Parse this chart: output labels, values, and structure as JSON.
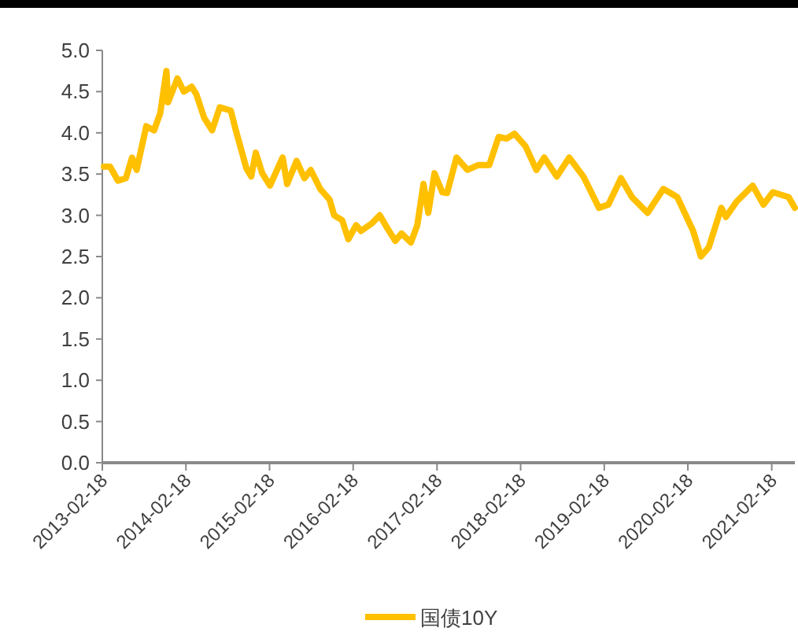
{
  "chart_data": {
    "type": "line",
    "x": [
      "2013-02-25",
      "2013-03-24",
      "2013-04-27",
      "2013-06-01",
      "2013-06-28",
      "2013-07-18",
      "2013-08-29",
      "2013-10-02",
      "2013-10-29",
      "2013-11-25",
      "2013-12-02",
      "2014-01-12",
      "2014-02-09",
      "2014-03-15",
      "2014-04-04",
      "2014-05-09",
      "2014-06-12",
      "2014-07-16",
      "2014-09-02",
      "2014-09-22",
      "2014-11-09",
      "2014-11-30",
      "2014-12-20",
      "2015-01-17",
      "2015-02-20",
      "2015-04-16",
      "2015-05-06",
      "2015-06-16",
      "2015-07-20",
      "2015-08-17",
      "2015-09-27",
      "2015-11-07",
      "2015-11-27",
      "2016-01-01",
      "2016-01-28",
      "2016-03-02",
      "2016-03-23",
      "2016-05-09",
      "2016-06-13",
      "2016-07-17",
      "2016-08-20",
      "2016-09-16",
      "2016-10-27",
      "2016-11-24",
      "2016-12-21",
      "2017-01-11",
      "2017-02-07",
      "2017-03-13",
      "2017-04-03",
      "2017-05-14",
      "2017-07-01",
      "2017-08-18",
      "2017-10-04",
      "2017-11-14",
      "2017-12-19",
      "2018-01-22",
      "2018-03-11",
      "2018-04-28",
      "2018-06-01",
      "2018-07-26",
      "2018-09-18",
      "2018-11-19",
      "2019-01-26",
      "2019-03-08",
      "2019-05-02",
      "2019-06-19",
      "2019-08-26",
      "2019-11-03",
      "2020-01-03",
      "2020-03-12",
      "2020-04-15",
      "2020-05-19",
      "2020-07-13",
      "2020-08-02",
      "2020-09-19",
      "2020-11-27",
      "2021-01-13",
      "2021-02-23",
      "2021-05-03",
      "2021-05-30"
    ],
    "series": [
      {
        "name": "国债10Y",
        "color": "#ffc000",
        "values": [
          3.59,
          3.59,
          3.42,
          3.45,
          3.7,
          3.55,
          4.08,
          4.03,
          4.24,
          4.75,
          4.37,
          4.66,
          4.5,
          4.56,
          4.47,
          4.18,
          4.03,
          4.31,
          4.27,
          4.05,
          3.57,
          3.47,
          3.76,
          3.51,
          3.36,
          3.7,
          3.38,
          3.66,
          3.45,
          3.55,
          3.32,
          3.19,
          3.0,
          2.94,
          2.71,
          2.88,
          2.81,
          2.9,
          3.0,
          2.84,
          2.69,
          2.78,
          2.67,
          2.88,
          3.38,
          3.03,
          3.51,
          3.28,
          3.27,
          3.7,
          3.55,
          3.61,
          3.61,
          3.95,
          3.93,
          3.99,
          3.84,
          3.55,
          3.7,
          3.47,
          3.7,
          3.47,
          3.09,
          3.13,
          3.45,
          3.22,
          3.03,
          3.32,
          3.22,
          2.81,
          2.5,
          2.61,
          3.09,
          2.98,
          3.17,
          3.36,
          3.13,
          3.28,
          3.22,
          3.09
        ]
      }
    ],
    "xlim": [
      "2013-02-18",
      "2021-05-30"
    ],
    "xticks": [
      "2013-02-18",
      "2014-02-18",
      "2015-02-18",
      "2016-02-18",
      "2017-02-18",
      "2018-02-18",
      "2019-02-18",
      "2020-02-18",
      "2021-02-18"
    ],
    "ylim": [
      0,
      5
    ],
    "yticks": [
      {
        "value": 0,
        "label": "0.0"
      },
      {
        "value": 0.5,
        "label": "0.5"
      },
      {
        "value": 1,
        "label": "1.0"
      },
      {
        "value": 1.5,
        "label": "1.5"
      },
      {
        "value": 2,
        "label": "2.0"
      },
      {
        "value": 2.5,
        "label": "2.5"
      },
      {
        "value": 3,
        "label": "3.0"
      },
      {
        "value": 3.5,
        "label": "3.5"
      },
      {
        "value": 4,
        "label": "4.0"
      },
      {
        "value": 4.5,
        "label": "4.5"
      },
      {
        "value": 5,
        "label": "5.0"
      }
    ],
    "grid": false,
    "legend": "bottom"
  }
}
